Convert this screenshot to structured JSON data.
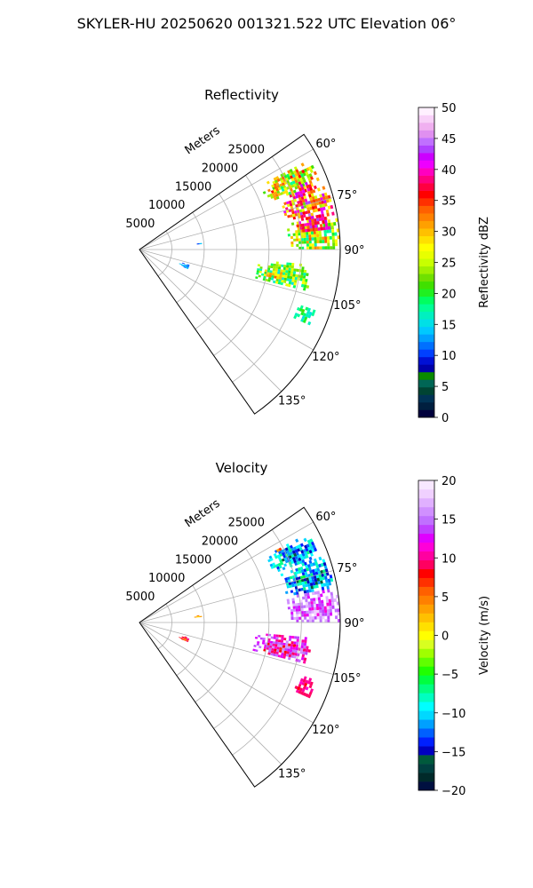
{
  "figure": {
    "title": "SKYLER-HU  20250620  001321.522 UTC Elevation 06°"
  },
  "chart_data": [
    {
      "type": "heatmap",
      "projection": "polar-sector",
      "title": "Reflectivity",
      "radial_axis_label": "Meters",
      "radial_ticks": [
        "5000",
        "10000",
        "15000",
        "20000",
        "25000"
      ],
      "radial_tick_values": [
        5000,
        10000,
        15000,
        20000,
        25000
      ],
      "r_max": 31000,
      "azimuth_range_deg": [
        55,
        145
      ],
      "azimuth_ticks": [
        "60°",
        "75°",
        "90°",
        "105°",
        "120°",
        "135°"
      ],
      "azimuth_tick_values": [
        60,
        75,
        90,
        105,
        120,
        135
      ],
      "grid": true,
      "colorbar": {
        "label": "Reflectivity dBZ",
        "range": [
          0,
          50
        ],
        "ticks": [
          "0",
          "5",
          "10",
          "15",
          "20",
          "25",
          "30",
          "35",
          "40",
          "45",
          "50"
        ],
        "tick_values": [
          0,
          5,
          10,
          15,
          20,
          25,
          30,
          35,
          40,
          45,
          50
        ],
        "colormap": "pyart_NWSRef"
      },
      "echo_regions": [
        {
          "az": [
            62,
            70
          ],
          "r": [
            21000,
            29500
          ],
          "value": 27,
          "spread": 12
        },
        {
          "az": [
            70,
            80
          ],
          "r": [
            23000,
            30500
          ],
          "value": 34,
          "spread": 12
        },
        {
          "az": [
            80,
            90
          ],
          "r": [
            23000,
            31000
          ],
          "value": 25,
          "spread": 10
        },
        {
          "az": [
            95,
            104
          ],
          "r": [
            18000,
            26500
          ],
          "value": 22,
          "spread": 8
        },
        {
          "az": [
            68,
            71
          ],
          "r": [
            25500,
            28500
          ],
          "value": 40,
          "spread": 6
        },
        {
          "az": [
            79,
            84
          ],
          "r": [
            24500,
            29500
          ],
          "value": 38,
          "spread": 6
        },
        {
          "az": [
            64,
            66
          ],
          "r": [
            22500,
            23500
          ],
          "value": 32,
          "spread": 4
        },
        {
          "az": [
            99,
            102
          ],
          "r": [
            20000,
            22500
          ],
          "value": 30,
          "spread": 4
        },
        {
          "az": [
            83,
            85
          ],
          "r": [
            8500,
            9500
          ],
          "value": 12,
          "spread": 4
        },
        {
          "az": [
            107,
            112
          ],
          "r": [
            6500,
            8000
          ],
          "value": 12,
          "spread": 4
        },
        {
          "az": [
            108,
            114
          ],
          "r": [
            26000,
            28500
          ],
          "value": 18,
          "spread": 4
        }
      ]
    },
    {
      "type": "heatmap",
      "projection": "polar-sector",
      "title": "Velocity",
      "radial_axis_label": "Meters",
      "radial_ticks": [
        "5000",
        "10000",
        "15000",
        "20000",
        "25000"
      ],
      "radial_tick_values": [
        5000,
        10000,
        15000,
        20000,
        25000
      ],
      "r_max": 31000,
      "azimuth_range_deg": [
        55,
        145
      ],
      "azimuth_ticks": [
        "60°",
        "75°",
        "90°",
        "105°",
        "120°",
        "135°"
      ],
      "azimuth_tick_values": [
        60,
        75,
        90,
        105,
        120,
        135
      ],
      "grid": true,
      "colorbar": {
        "label": "Velocity (m/s)",
        "range": [
          -20,
          20
        ],
        "ticks": [
          "−20",
          "−15",
          "−10",
          "−5",
          "0",
          "5",
          "10",
          "15",
          "20"
        ],
        "tick_values": [
          -20,
          -15,
          -10,
          -5,
          0,
          5,
          10,
          15,
          20
        ],
        "colormap": "pyart_BuDRd18"
      },
      "echo_regions": [
        {
          "az": [
            62,
            70
          ],
          "r": [
            22000,
            29500
          ],
          "value": -11,
          "spread": 5
        },
        {
          "az": [
            70,
            80
          ],
          "r": [
            23000,
            30500
          ],
          "value": -11,
          "spread": 6
        },
        {
          "az": [
            80,
            90
          ],
          "r": [
            23000,
            31000
          ],
          "value": 15,
          "spread": 4
        },
        {
          "az": [
            95,
            104
          ],
          "r": [
            18000,
            26500
          ],
          "value": 12,
          "spread": 5
        },
        {
          "az": [
            61,
            63
          ],
          "r": [
            23500,
            24500
          ],
          "value": 5,
          "spread": 3
        },
        {
          "az": [
            83,
            85
          ],
          "r": [
            8500,
            9500
          ],
          "value": 3,
          "spread": 3
        },
        {
          "az": [
            107,
            112
          ],
          "r": [
            6500,
            8000
          ],
          "value": 8,
          "spread": 4
        },
        {
          "az": [
            108,
            114
          ],
          "r": [
            26000,
            28500
          ],
          "value": 10,
          "spread": 2
        }
      ]
    }
  ]
}
